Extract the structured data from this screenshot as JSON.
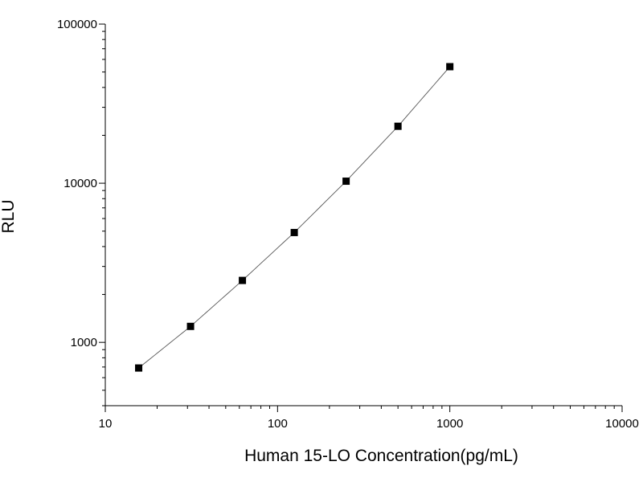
{
  "chart_data": {
    "type": "scatter",
    "title": "",
    "xlabel": "Human 15-LO Concentration(pg/mL)",
    "ylabel": "RLU",
    "xscale": "log",
    "yscale": "log",
    "xlim": [
      10,
      10000
    ],
    "ylim": [
      400,
      100000
    ],
    "x_ticks": [
      10,
      100,
      1000,
      10000
    ],
    "x_tick_labels": [
      "10",
      "100",
      "1000",
      "10000"
    ],
    "y_ticks": [
      1000,
      10000,
      100000
    ],
    "y_tick_labels": [
      "1000",
      "10000",
      "100000"
    ],
    "grid": false,
    "legend": "none",
    "marker": "square",
    "fit_line": true,
    "colors": {
      "marker": "#000000",
      "line": "#555555",
      "axis": "#000000"
    },
    "series": [
      {
        "x": [
          15.625,
          31.25,
          62.5,
          125,
          250,
          500,
          1000
        ],
        "y": [
          690,
          1260,
          2450,
          4900,
          10300,
          22800,
          54000
        ]
      }
    ]
  }
}
